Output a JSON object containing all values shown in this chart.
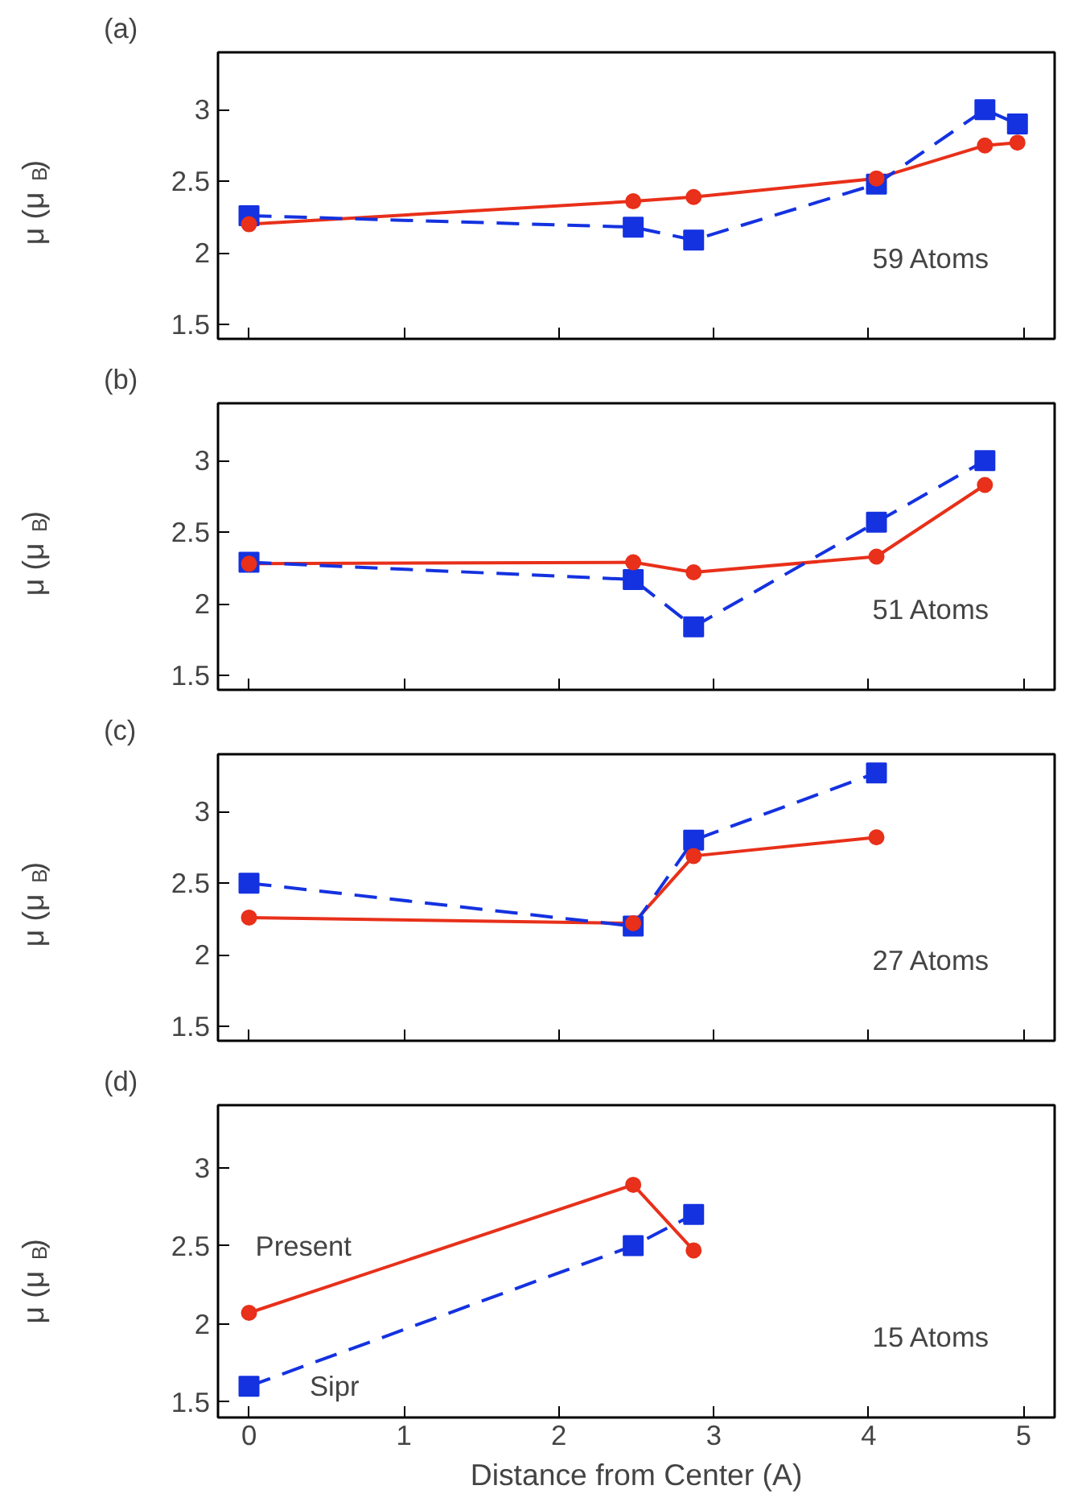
{
  "chart_data": [
    {
      "type": "line",
      "title": "(a)",
      "ylabel": "μ (μ$_{B}$)",
      "xlim": [
        -0.2,
        5.2
      ],
      "ylim": [
        1.4,
        3.4
      ],
      "xticks": [
        0,
        1,
        2,
        3,
        4,
        5
      ],
      "yticks": [
        1.5,
        2,
        2.5,
        3
      ],
      "tick_labels": "y",
      "grid": false,
      "annotations": [
        "59 Atoms"
      ],
      "series": [
        {
          "color": "#e8301a",
          "marker": "circle",
          "line_style": "solid",
          "x": [
            0,
            2.48,
            2.87,
            4.05,
            4.75,
            4.96
          ],
          "values": [
            2.2,
            2.36,
            2.39,
            2.52,
            2.75,
            2.77
          ]
        },
        {
          "color": "#1432e0",
          "marker": "square",
          "line_style": "dashed",
          "x": [
            0,
            2.48,
            2.87,
            4.05,
            4.75,
            4.96
          ],
          "values": [
            2.26,
            2.18,
            2.09,
            2.48,
            3.0,
            2.9
          ]
        }
      ]
    },
    {
      "type": "line",
      "title": "(b)",
      "ylabel": "μ (μ$_{B}$)",
      "xlim": [
        -0.2,
        5.2
      ],
      "ylim": [
        1.4,
        3.4
      ],
      "xticks": [
        0,
        1,
        2,
        3,
        4,
        5
      ],
      "yticks": [
        1.5,
        2,
        2.5,
        3
      ],
      "tick_labels": "y",
      "grid": false,
      "annotations": [
        "51 Atoms"
      ],
      "series": [
        {
          "color": "#e8301a",
          "marker": "circle",
          "line_style": "solid",
          "x": [
            0,
            2.48,
            2.87,
            4.05,
            4.75
          ],
          "values": [
            2.28,
            2.29,
            2.22,
            2.33,
            2.83
          ]
        },
        {
          "color": "#1432e0",
          "marker": "square",
          "line_style": "dashed",
          "x": [
            0,
            2.48,
            2.87,
            4.05,
            4.75
          ],
          "values": [
            2.29,
            2.17,
            1.84,
            2.57,
            3.0
          ]
        }
      ]
    },
    {
      "type": "line",
      "title": "(c)",
      "ylabel": "μ (μ$_{B}$)",
      "xlim": [
        -0.2,
        5.2
      ],
      "ylim": [
        1.4,
        3.4
      ],
      "xticks": [
        0,
        1,
        2,
        3,
        4,
        5
      ],
      "yticks": [
        1.5,
        2,
        2.5,
        3
      ],
      "tick_labels": "y",
      "grid": false,
      "annotations": [
        "27 Atoms"
      ],
      "series": [
        {
          "color": "#e8301a",
          "marker": "circle",
          "line_style": "solid",
          "x": [
            0,
            2.48,
            2.87,
            4.05
          ],
          "values": [
            2.26,
            2.22,
            2.69,
            2.82
          ]
        },
        {
          "color": "#1432e0",
          "marker": "square",
          "line_style": "dashed",
          "x": [
            0,
            2.48,
            2.87,
            4.05
          ],
          "values": [
            2.5,
            2.2,
            2.8,
            3.27
          ]
        }
      ]
    },
    {
      "type": "line",
      "title": "(d)",
      "xlabel": "Distance from Center (A)",
      "ylabel": "μ (μ$_{B}$)",
      "xlim": [
        -0.2,
        5.2
      ],
      "ylim": [
        1.4,
        3.4
      ],
      "xticks": [
        0,
        1,
        2,
        3,
        4,
        5
      ],
      "yticks": [
        1.5,
        2,
        2.5,
        3
      ],
      "grid": false,
      "annotations": [
        "15 Atoms"
      ],
      "series": [
        {
          "name": "Present",
          "color": "#e8301a",
          "marker": "circle",
          "line_style": "solid",
          "x": [
            0,
            2.48,
            2.87
          ],
          "values": [
            2.07,
            2.89,
            2.47
          ]
        },
        {
          "name": "Sipr",
          "color": "#1432e0",
          "marker": "square",
          "line_style": "dashed",
          "x": [
            0,
            2.48,
            2.87
          ],
          "values": [
            1.6,
            2.5,
            2.7
          ]
        }
      ]
    }
  ]
}
